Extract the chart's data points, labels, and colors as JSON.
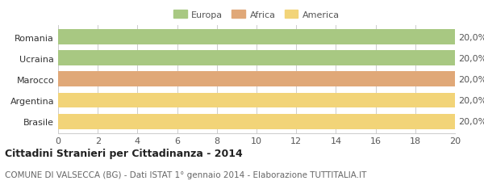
{
  "categories": [
    "Romania",
    "Ucraina",
    "Marocco",
    "Argentina",
    "Brasile"
  ],
  "values": [
    20,
    20,
    20,
    20,
    20
  ],
  "bar_colors": [
    "#a8c882",
    "#a8c882",
    "#e0a878",
    "#f2d478",
    "#f2d478"
  ],
  "bar_labels": [
    "20,0%",
    "20,0%",
    "20,0%",
    "20,0%",
    "20,0%"
  ],
  "legend_entries": [
    {
      "label": "Europa",
      "color": "#a8c882"
    },
    {
      "label": "Africa",
      "color": "#e0a878"
    },
    {
      "label": "America",
      "color": "#f2d478"
    }
  ],
  "xlim": [
    0,
    20
  ],
  "xticks": [
    0,
    2,
    4,
    6,
    8,
    10,
    12,
    14,
    16,
    18,
    20
  ],
  "title": "Cittadini Stranieri per Cittadinanza - 2014",
  "subtitle": "COMUNE DI VALSECCA (BG) - Dati ISTAT 1° gennaio 2014 - Elaborazione TUTTITALIA.IT",
  "background_color": "#ffffff",
  "grid_color": "#cccccc",
  "title_fontsize": 9,
  "subtitle_fontsize": 7.5,
  "label_fontsize": 8,
  "tick_fontsize": 8,
  "bar_height": 0.72
}
